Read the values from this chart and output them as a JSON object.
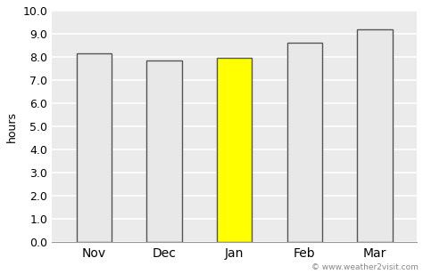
{
  "categories": [
    "Nov",
    "Dec",
    "Jan",
    "Feb",
    "Mar"
  ],
  "values": [
    8.15,
    7.85,
    7.95,
    8.6,
    9.2
  ],
  "bar_colors": [
    "#e8e8e8",
    "#e8e8e8",
    "#ffff00",
    "#e8e8e8",
    "#e8e8e8"
  ],
  "bar_edge_colors": [
    "#555555",
    "#555555",
    "#555555",
    "#555555",
    "#555555"
  ],
  "ylabel": "hours",
  "ylim": [
    0,
    10.0
  ],
  "yticks": [
    0.0,
    1.0,
    2.0,
    3.0,
    4.0,
    5.0,
    6.0,
    7.0,
    8.0,
    9.0,
    10.0
  ],
  "figure_bg_color": "#ffffff",
  "plot_bg_color": "#ebebeb",
  "grid_color": "#ffffff",
  "watermark": "© www.weather2visit.com",
  "bar_width": 0.5,
  "tick_fontsize": 9,
  "ylabel_fontsize": 9,
  "xtick_fontsize": 10
}
